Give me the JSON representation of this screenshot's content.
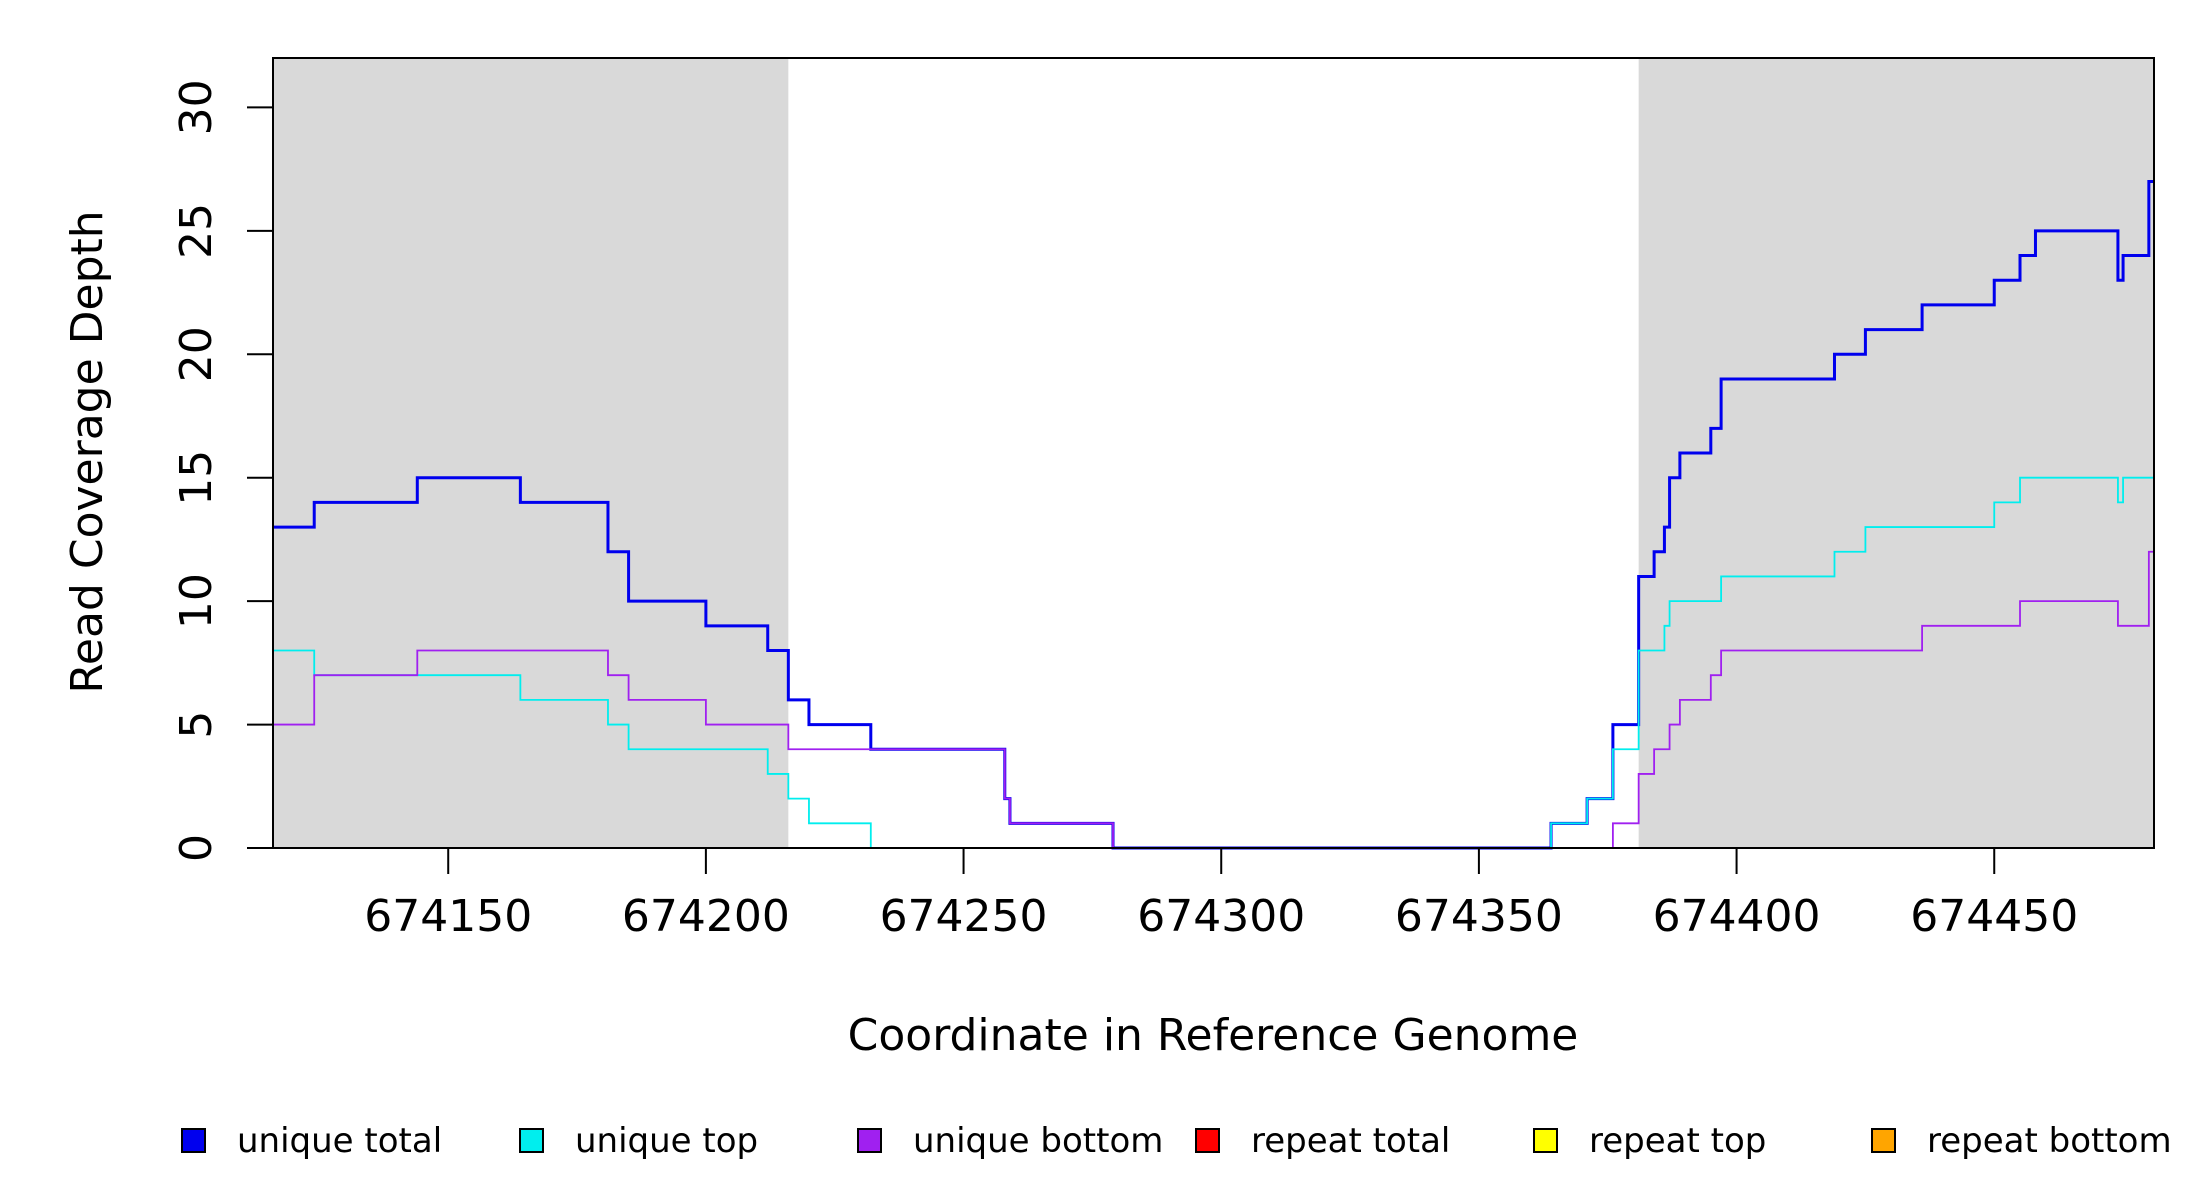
{
  "chart_data": {
    "type": "line",
    "title": "",
    "xlabel": "Coordinate in Reference Genome",
    "ylabel": "Read Coverage Depth",
    "xlim": [
      674116,
      674481
    ],
    "ylim": [
      0,
      32
    ],
    "x_ticks": [
      "674150",
      "674200",
      "674250",
      "674300",
      "674350",
      "674400",
      "674450"
    ],
    "y_ticks": [
      "0",
      "5",
      "10",
      "15",
      "20",
      "25",
      "30"
    ],
    "grid": false,
    "legend_position": "bottom",
    "shaded_regions": [
      {
        "start": 674116,
        "end": 674216,
        "color": "#d9d9d9"
      },
      {
        "start": 674381,
        "end": 674481,
        "color": "#d9d9d9"
      }
    ],
    "series": [
      {
        "name": "unique total",
        "color": "#0000ee",
        "points": [
          [
            674116,
            13
          ],
          [
            674124,
            14
          ],
          [
            674144,
            15
          ],
          [
            674164,
            14
          ],
          [
            674181,
            12
          ],
          [
            674185,
            10
          ],
          [
            674200,
            9
          ],
          [
            674212,
            8
          ],
          [
            674216,
            6
          ],
          [
            674220,
            5
          ],
          [
            674232,
            4
          ],
          [
            674258,
            2
          ],
          [
            674259,
            1
          ],
          [
            674279,
            0
          ],
          [
            674364,
            1
          ],
          [
            674371,
            2
          ],
          [
            674376,
            5
          ],
          [
            674381,
            11
          ],
          [
            674384,
            12
          ],
          [
            674386,
            13
          ],
          [
            674387,
            15
          ],
          [
            674389,
            16
          ],
          [
            674395,
            17
          ],
          [
            674397,
            19
          ],
          [
            674419,
            20
          ],
          [
            674425,
            21
          ],
          [
            674436,
            22
          ],
          [
            674450,
            23
          ],
          [
            674455,
            24
          ],
          [
            674458,
            25
          ],
          [
            674474,
            23
          ],
          [
            674475,
            24
          ],
          [
            674480,
            27
          ]
        ]
      },
      {
        "name": "unique top",
        "color": "#00eeee",
        "points": [
          [
            674116,
            8
          ],
          [
            674124,
            7
          ],
          [
            674164,
            6
          ],
          [
            674181,
            5
          ],
          [
            674185,
            4
          ],
          [
            674212,
            3
          ],
          [
            674216,
            2
          ],
          [
            674220,
            1
          ],
          [
            674232,
            0
          ],
          [
            674364,
            1
          ],
          [
            674371,
            2
          ],
          [
            674376,
            4
          ],
          [
            674381,
            8
          ],
          [
            674386,
            9
          ],
          [
            674387,
            10
          ],
          [
            674397,
            11
          ],
          [
            674419,
            12
          ],
          [
            674425,
            13
          ],
          [
            674450,
            14
          ],
          [
            674455,
            15
          ],
          [
            674474,
            14
          ],
          [
            674475,
            15
          ]
        ]
      },
      {
        "name": "unique bottom",
        "color": "#a020f0",
        "points": [
          [
            674116,
            5
          ],
          [
            674124,
            7
          ],
          [
            674144,
            8
          ],
          [
            674181,
            7
          ],
          [
            674185,
            6
          ],
          [
            674200,
            5
          ],
          [
            674216,
            4
          ],
          [
            674258,
            2
          ],
          [
            674259,
            1
          ],
          [
            674279,
            0
          ],
          [
            674376,
            1
          ],
          [
            674381,
            3
          ],
          [
            674384,
            4
          ],
          [
            674387,
            5
          ],
          [
            674389,
            6
          ],
          [
            674395,
            7
          ],
          [
            674397,
            8
          ],
          [
            674436,
            9
          ],
          [
            674455,
            10
          ],
          [
            674474,
            9
          ],
          [
            674480,
            12
          ]
        ]
      },
      {
        "name": "repeat total",
        "color": "#ff0000",
        "points": [
          [
            674116,
            0
          ]
        ]
      },
      {
        "name": "repeat top",
        "color": "#ffff00",
        "points": [
          [
            674116,
            0
          ]
        ]
      },
      {
        "name": "repeat bottom",
        "color": "#ffa500",
        "points": [
          [
            674116,
            0
          ]
        ]
      }
    ]
  }
}
